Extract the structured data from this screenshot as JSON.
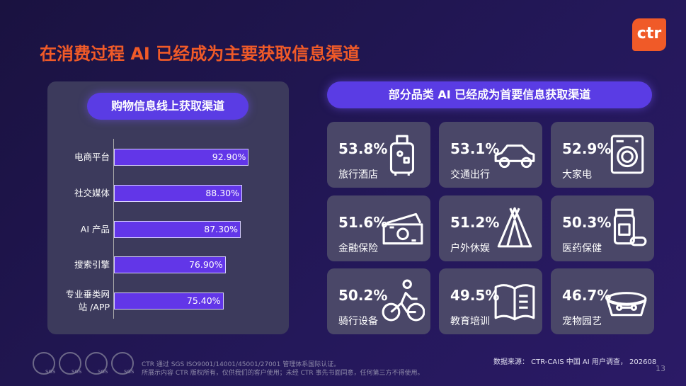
{
  "header": {
    "title": "在消费过程 AI 已经成为主要获取信息渠道",
    "logo": "ctr"
  },
  "chart_data": {
    "type": "bar",
    "orientation": "horizontal",
    "title": "购物信息线上获取渠道",
    "categories": [
      "电商平台",
      "社交媒体",
      "AI 产品",
      "搜索引擎",
      "专业垂类网站 /APP"
    ],
    "values": [
      92.9,
      88.3,
      87.3,
      76.9,
      75.4
    ],
    "value_labels": [
      "92.90%",
      "88.30%",
      "87.30%",
      "76.90%",
      "75.40%"
    ],
    "color": "#6236e8"
  },
  "tiles_panel": {
    "title": "部分品类 AI 已经成为首要信息获取渠道",
    "tiles": [
      {
        "value": "53.8%",
        "label": "旅行酒店"
      },
      {
        "value": "53.1%",
        "label": "交通出行"
      },
      {
        "value": "52.9%",
        "label": "大家电"
      },
      {
        "value": "51.6%",
        "label": "金融保险"
      },
      {
        "value": "51.2%",
        "label": "户外休娱"
      },
      {
        "value": "50.3%",
        "label": "医药保健"
      },
      {
        "value": "50.2%",
        "label": "骑行设备"
      },
      {
        "value": "49.5%",
        "label": "教育培训"
      },
      {
        "value": "46.7%",
        "label": "宠物园艺"
      }
    ]
  },
  "footer": {
    "cert_line1": "CTR 通过 SGS ISO9001/14001/45001/27001 管理体系国际认证。",
    "cert_line2": "所展示内容 CTR 版权所有，仅供我们的客户使用；未经 CTR 事先书面同意，任何第三方不得使用。",
    "badge": "SGS",
    "source": "数据来源：  CTR-CAIS 中国 AI 用户调查， 202608",
    "page": "13"
  }
}
